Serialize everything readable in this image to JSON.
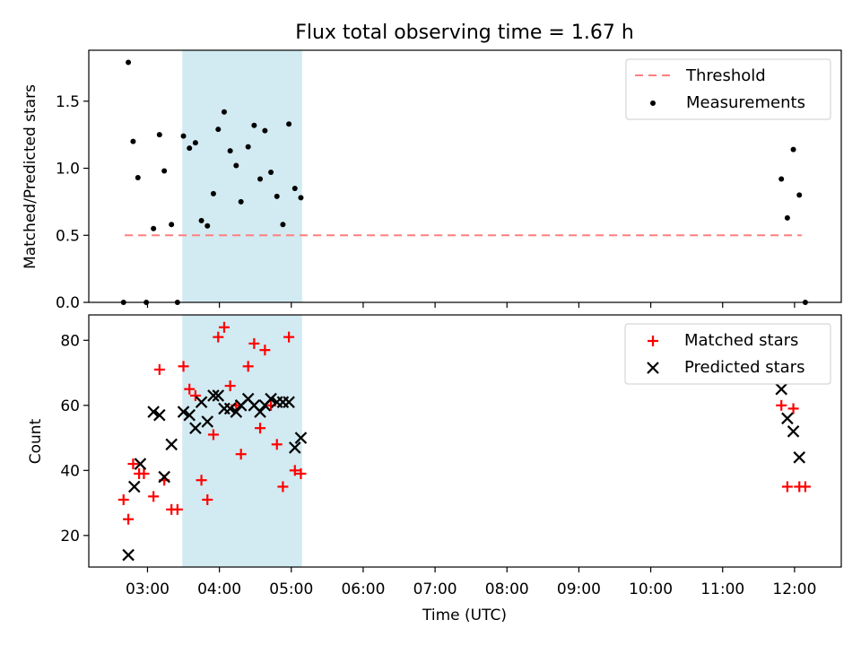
{
  "title": "Flux total observing time = 1.67 h",
  "xlabel": "Time (UTC)",
  "x_ticks": [
    "03:00",
    "04:00",
    "05:00",
    "06:00",
    "07:00",
    "08:00",
    "09:00",
    "10:00",
    "11:00",
    "12:00"
  ],
  "colors": {
    "shade": "#add8e6",
    "threshold": "#ff7f7f",
    "matched": "#ff0000",
    "predicted": "#000000",
    "measurements": "#000000"
  },
  "chart_data": [
    {
      "type": "scatter",
      "ylabel": "Matched/Predicted stars",
      "xlim": [
        "02:11",
        "12:39"
      ],
      "ylim": [
        0,
        1.88
      ],
      "y_ticks": [
        "0.0",
        "0.5",
        "1.0",
        "1.5"
      ],
      "legend_position": "top-right",
      "shaded_interval": [
        "03:29",
        "05:09"
      ],
      "threshold": {
        "name": "Threshold",
        "value": 0.5,
        "x_range": [
          "02:41",
          "12:06"
        ]
      },
      "series": [
        {
          "name": "Measurements",
          "points": [
            [
              "02:40",
              0.0
            ],
            [
              "02:44",
              1.79
            ],
            [
              "02:48",
              1.2
            ],
            [
              "02:52",
              0.93
            ],
            [
              "02:59",
              0.0
            ],
            [
              "03:05",
              0.55
            ],
            [
              "03:10",
              1.25
            ],
            [
              "03:14",
              0.98
            ],
            [
              "03:20",
              0.58
            ],
            [
              "03:25",
              0.0
            ],
            [
              "03:30",
              1.24
            ],
            [
              "03:35",
              1.15
            ],
            [
              "03:40",
              1.19
            ],
            [
              "03:45",
              0.61
            ],
            [
              "03:50",
              0.57
            ],
            [
              "03:55",
              0.81
            ],
            [
              "03:59",
              1.29
            ],
            [
              "04:04",
              1.42
            ],
            [
              "04:09",
              1.13
            ],
            [
              "04:14",
              1.02
            ],
            [
              "04:18",
              0.75
            ],
            [
              "04:24",
              1.16
            ],
            [
              "04:29",
              1.32
            ],
            [
              "04:34",
              0.92
            ],
            [
              "04:38",
              1.28
            ],
            [
              "04:43",
              0.97
            ],
            [
              "04:48",
              0.79
            ],
            [
              "04:53",
              0.58
            ],
            [
              "04:58",
              1.33
            ],
            [
              "05:03",
              0.85
            ],
            [
              "05:08",
              0.78
            ],
            [
              "11:49",
              0.92
            ],
            [
              "11:54",
              0.63
            ],
            [
              "11:59",
              1.14
            ],
            [
              "12:04",
              0.8
            ],
            [
              "12:09",
              0.0
            ]
          ]
        }
      ]
    },
    {
      "type": "scatter",
      "ylabel": "Count",
      "xlim": [
        "02:11",
        "12:39"
      ],
      "ylim": [
        10.3,
        87.8
      ],
      "y_ticks": [
        "20",
        "40",
        "60",
        "80"
      ],
      "legend_position": "top-right",
      "shaded_interval": [
        "03:29",
        "05:09"
      ],
      "series": [
        {
          "name": "Matched stars",
          "marker": "plus",
          "points": [
            [
              "02:40",
              31
            ],
            [
              "02:44",
              25
            ],
            [
              "02:48",
              42
            ],
            [
              "02:53",
              39
            ],
            [
              "02:57",
              39
            ],
            [
              "03:05",
              32
            ],
            [
              "03:10",
              71
            ],
            [
              "03:14",
              37
            ],
            [
              "03:20",
              28
            ],
            [
              "03:25",
              28
            ],
            [
              "03:30",
              72
            ],
            [
              "03:35",
              65
            ],
            [
              "03:40",
              63
            ],
            [
              "03:45",
              37
            ],
            [
              "03:50",
              31
            ],
            [
              "03:55",
              51
            ],
            [
              "03:59",
              81
            ],
            [
              "04:04",
              84
            ],
            [
              "04:09",
              66
            ],
            [
              "04:14",
              60
            ],
            [
              "04:18",
              45
            ],
            [
              "04:24",
              72
            ],
            [
              "04:29",
              79
            ],
            [
              "04:34",
              53
            ],
            [
              "04:38",
              77
            ],
            [
              "04:43",
              60
            ],
            [
              "04:48",
              48
            ],
            [
              "04:53",
              35
            ],
            [
              "04:58",
              81
            ],
            [
              "05:03",
              40
            ],
            [
              "05:08",
              39
            ],
            [
              "11:49",
              60
            ],
            [
              "11:54",
              35
            ],
            [
              "11:59",
              59
            ],
            [
              "12:04",
              35
            ],
            [
              "12:09",
              35
            ]
          ]
        },
        {
          "name": "Predicted stars",
          "marker": "x",
          "points": [
            [
              "02:44",
              14
            ],
            [
              "02:49",
              35
            ],
            [
              "02:54",
              42
            ],
            [
              "03:05",
              58
            ],
            [
              "03:10",
              57
            ],
            [
              "03:20",
              48
            ],
            [
              "03:14",
              38
            ],
            [
              "03:30",
              58
            ],
            [
              "03:35",
              57
            ],
            [
              "03:40",
              53
            ],
            [
              "03:45",
              61
            ],
            [
              "03:50",
              55
            ],
            [
              "03:55",
              63
            ],
            [
              "03:59",
              63
            ],
            [
              "04:04",
              59
            ],
            [
              "04:09",
              59
            ],
            [
              "04:14",
              58
            ],
            [
              "04:18",
              60
            ],
            [
              "04:24",
              62
            ],
            [
              "04:29",
              60
            ],
            [
              "04:34",
              58
            ],
            [
              "04:38",
              60
            ],
            [
              "04:43",
              62
            ],
            [
              "04:48",
              61
            ],
            [
              "04:53",
              61
            ],
            [
              "04:58",
              61
            ],
            [
              "05:03",
              47
            ],
            [
              "05:08",
              50
            ],
            [
              "11:49",
              65
            ],
            [
              "11:54",
              56
            ],
            [
              "11:59",
              52
            ],
            [
              "12:04",
              44
            ]
          ]
        }
      ]
    }
  ]
}
